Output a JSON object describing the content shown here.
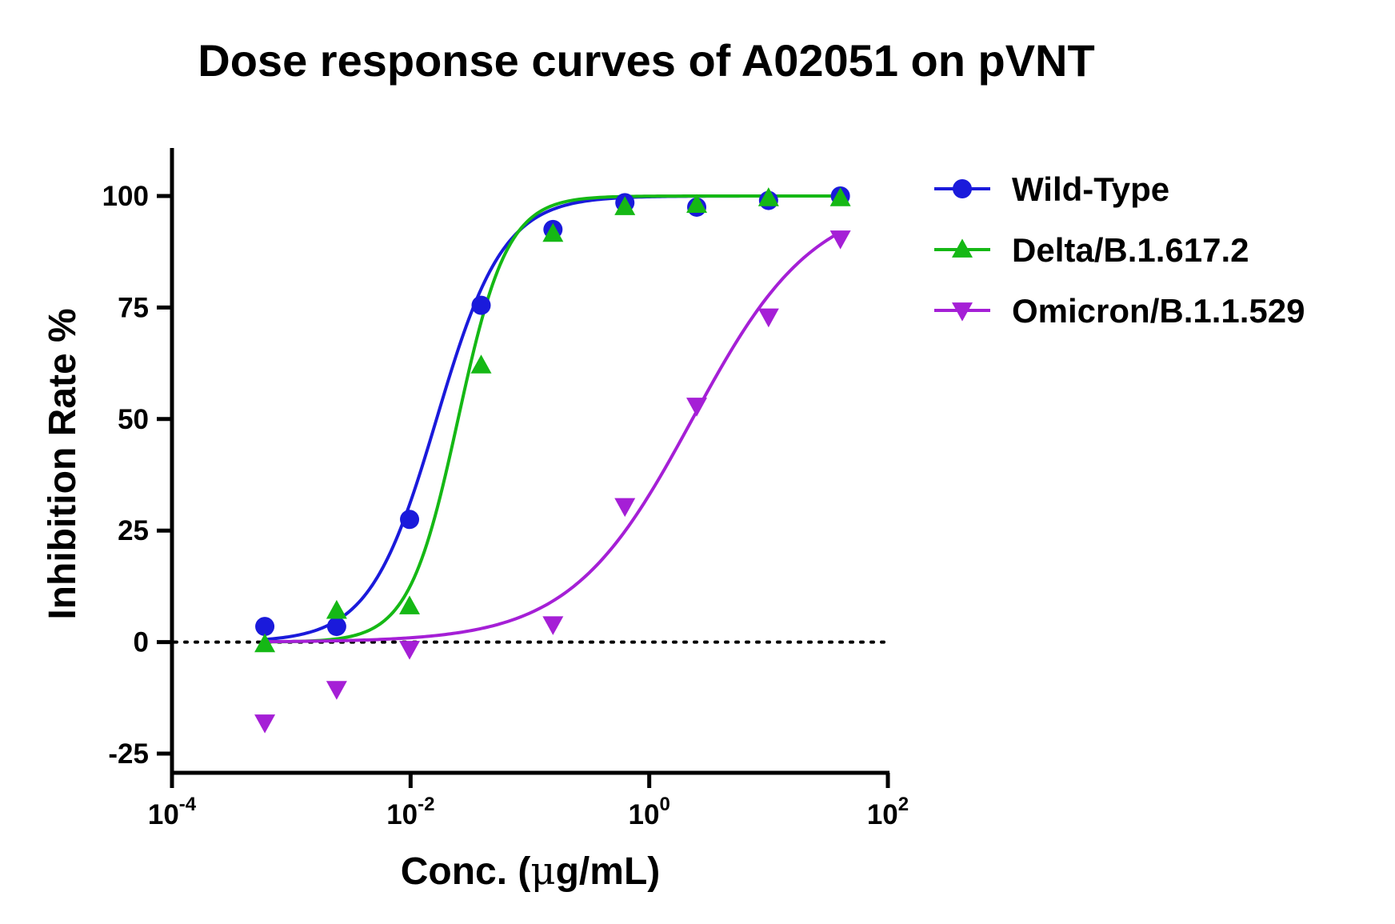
{
  "chart_data": {
    "type": "scatter",
    "title": "Dose response curves of A02051 on pVNT",
    "xlabel_prefix": "Conc. (",
    "xlabel_mu": "μ",
    "xlabel_suffix": "g/mL)",
    "ylabel": "Inhibition Rate %",
    "x_scale": "log10",
    "xlim": [
      0.0001,
      100
    ],
    "ylim": [
      -30,
      110
    ],
    "x_ticks": [
      {
        "base": "10",
        "exp": "-4",
        "value": 0.0001
      },
      {
        "base": "10",
        "exp": "-2",
        "value": 0.01
      },
      {
        "base": "10",
        "exp": "0",
        "value": 1
      },
      {
        "base": "10",
        "exp": "2",
        "value": 100
      }
    ],
    "y_ticks": [
      {
        "label": "100",
        "value": 100
      },
      {
        "label": "75",
        "value": 75
      },
      {
        "label": "50",
        "value": 50
      },
      {
        "label": "25",
        "value": 25
      },
      {
        "label": "0",
        "value": 0
      },
      {
        "label": "-25",
        "value": -25
      }
    ],
    "reference_line": {
      "y": 0,
      "style": "dotted",
      "xmax": 100
    },
    "legend_position": "right",
    "series": [
      {
        "name": "Wild-Type",
        "color": "#1a1adb",
        "marker": "circle",
        "x": [
          0.0006,
          0.0024,
          0.0098,
          0.039,
          0.156,
          0.625,
          2.5,
          10,
          40
        ],
        "y": [
          3.5,
          3.5,
          27.5,
          75.5,
          92.5,
          98.5,
          97.5,
          99,
          100
        ],
        "fit": {
          "bottom": 0,
          "top": 100,
          "ec50": 0.0165,
          "hill": 1.55
        }
      },
      {
        "name": "Delta/B.1.617.2",
        "color": "#15b815",
        "marker": "triangle-up",
        "x": [
          0.0006,
          0.0024,
          0.0098,
          0.039,
          0.156,
          0.625,
          2.5,
          10,
          40
        ],
        "y": [
          -0.5,
          7,
          8,
          62,
          91.5,
          97.5,
          98,
          99.5,
          99.5
        ],
        "fit": {
          "bottom": 0,
          "top": 100,
          "ec50": 0.025,
          "hill": 2.1
        }
      },
      {
        "name": "Omicron/B.1.1.529",
        "color": "#a51fd6",
        "marker": "triangle-down",
        "x": [
          0.0006,
          0.0024,
          0.0098,
          0.156,
          0.625,
          2.5,
          10,
          40
        ],
        "y": [
          -18,
          -10.5,
          -1.5,
          4,
          30.5,
          53,
          73,
          90.5
        ],
        "fit": {
          "bottom": 0,
          "top": 100,
          "ec50": 2.3,
          "hill": 0.85
        }
      }
    ]
  }
}
